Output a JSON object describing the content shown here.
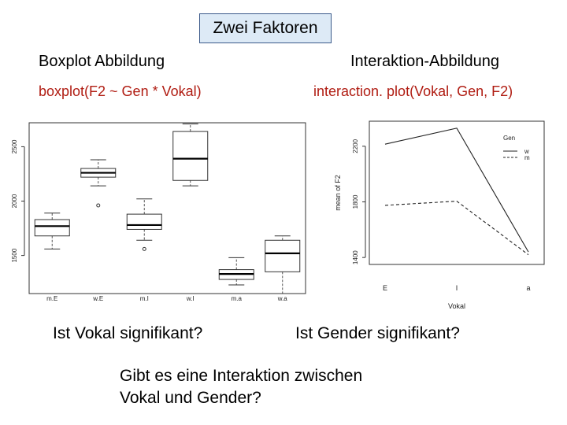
{
  "slide": {
    "title": "Zwei Faktoren",
    "left_heading": "Boxplot Abbildung",
    "right_heading": "Interaktion-Abbildung",
    "left_code": "boxplot(F2 ~ Gen * Vokal)",
    "right_code": "interaction. plot(Vokal, Gen, F2)",
    "question_vokal": "Ist Vokal signifikant?",
    "question_gender": "Ist Gender signifikant?",
    "question_interaction_line1": "Gibt es eine Interaktion zwischen",
    "question_interaction_line2": "Vokal und Gender?"
  },
  "chart_data": [
    {
      "type": "boxplot",
      "categories": [
        "m.E",
        "w.E",
        "m.I",
        "w.I",
        "m.a",
        "w.a"
      ],
      "ylim": [
        1150,
        2720
      ],
      "yticks": [
        "1500",
        "2000",
        "2500"
      ],
      "ytick_values": [
        1500,
        2000,
        2500
      ],
      "boxes": [
        {
          "whisker_low": 1560,
          "q1": 1680,
          "median": 1770,
          "q3": 1830,
          "whisker_high": 1890,
          "outliers": []
        },
        {
          "whisker_low": 2140,
          "q1": 2220,
          "median": 2260,
          "q3": 2300,
          "whisker_high": 2380,
          "outliers": [
            1960
          ]
        },
        {
          "whisker_low": 1640,
          "q1": 1740,
          "median": 1780,
          "q3": 1880,
          "whisker_high": 2020,
          "outliers": [
            1560
          ]
        },
        {
          "whisker_low": 2140,
          "q1": 2190,
          "median": 2390,
          "q3": 2640,
          "whisker_high": 2710,
          "outliers": []
        },
        {
          "whisker_low": 1230,
          "q1": 1280,
          "median": 1330,
          "q3": 1370,
          "whisker_high": 1480,
          "outliers": []
        },
        {
          "whisker_low": 1150,
          "q1": 1350,
          "median": 1520,
          "q3": 1640,
          "whisker_high": 1680,
          "outliers": []
        }
      ],
      "grid": false
    },
    {
      "type": "line",
      "xlabel": "Vokal",
      "ylabel": "mean of F2",
      "categories": [
        "E",
        "I",
        "a"
      ],
      "ylim": [
        1350,
        2380
      ],
      "yticks": [
        "1400",
        "1800",
        "2200"
      ],
      "ytick_values": [
        1400,
        1800,
        2200
      ],
      "legend_title": "Gen",
      "legend_position": "top-right",
      "series": [
        {
          "name": "w",
          "values": [
            2215,
            2330,
            1440
          ],
          "style": "solid"
        },
        {
          "name": "m",
          "values": [
            1775,
            1805,
            1420
          ],
          "style": "dashed"
        }
      ],
      "grid": false
    }
  ]
}
